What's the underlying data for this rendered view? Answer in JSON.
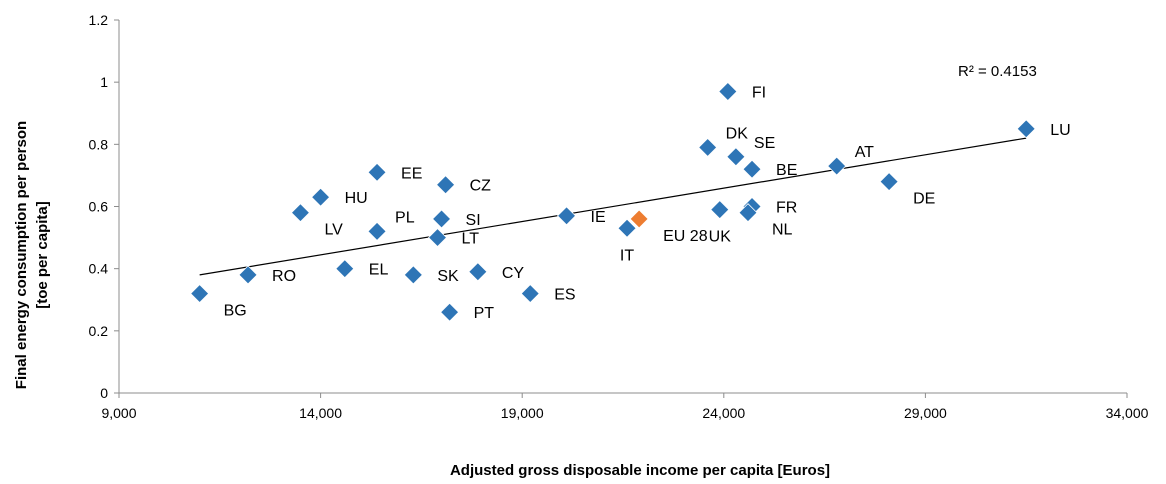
{
  "chart_data": {
    "type": "scatter",
    "title": "",
    "xlabel": "Adjusted gross disposable income per capita [Euros]",
    "ylabel_lines": [
      "Final energy consumption per person",
      "[toe per capita]"
    ],
    "xlim": [
      9000,
      34000
    ],
    "ylim": [
      0,
      1.2
    ],
    "x_ticks": [
      9000,
      14000,
      19000,
      24000,
      29000,
      34000
    ],
    "x_tick_labels": [
      "9,000",
      "14,000",
      "19,000",
      "24,000",
      "29,000",
      "34,000"
    ],
    "y_ticks": [
      0,
      0.2,
      0.4,
      0.6,
      0.8,
      1,
      1.2
    ],
    "y_tick_labels": [
      "0",
      "0.2",
      "0.4",
      "0.6",
      "0.8",
      "1",
      "1.2"
    ],
    "grid": false,
    "trendline": {
      "type": "linear",
      "x": [
        11000,
        31500
      ],
      "y": [
        0.38,
        0.82
      ]
    },
    "annotation": "R² = 0.4153",
    "colors": {
      "country": "#2e75b6",
      "eu": "#ed7d31",
      "line": "#000000"
    },
    "points": [
      {
        "label": "BG",
        "x": 11000,
        "y": 0.32,
        "group": "country",
        "label_pos": "below-right"
      },
      {
        "label": "RO",
        "x": 12200,
        "y": 0.38,
        "group": "country",
        "label_pos": "right"
      },
      {
        "label": "LV",
        "x": 13500,
        "y": 0.58,
        "group": "country",
        "label_pos": "below-right"
      },
      {
        "label": "HU",
        "x": 14000,
        "y": 0.63,
        "group": "country",
        "label_pos": "right"
      },
      {
        "label": "EL",
        "x": 14600,
        "y": 0.4,
        "group": "country",
        "label_pos": "right"
      },
      {
        "label": "EE",
        "x": 15400,
        "y": 0.71,
        "group": "country",
        "label_pos": "right"
      },
      {
        "label": "PL",
        "x": 15400,
        "y": 0.52,
        "group": "country",
        "label_pos": "above-right"
      },
      {
        "label": "SK",
        "x": 16300,
        "y": 0.38,
        "group": "country",
        "label_pos": "right"
      },
      {
        "label": "SI",
        "x": 17000,
        "y": 0.56,
        "group": "country",
        "label_pos": "right"
      },
      {
        "label": "LT",
        "x": 16900,
        "y": 0.5,
        "group": "country",
        "label_pos": "right"
      },
      {
        "label": "CZ",
        "x": 17100,
        "y": 0.67,
        "group": "country",
        "label_pos": "right"
      },
      {
        "label": "PT",
        "x": 17200,
        "y": 0.26,
        "group": "country",
        "label_pos": "right"
      },
      {
        "label": "CY",
        "x": 17900,
        "y": 0.39,
        "group": "country",
        "label_pos": "right"
      },
      {
        "label": "ES",
        "x": 19200,
        "y": 0.32,
        "group": "country",
        "label_pos": "right"
      },
      {
        "label": "IE",
        "x": 20100,
        "y": 0.57,
        "group": "country",
        "label_pos": "right"
      },
      {
        "label": "IT",
        "x": 21600,
        "y": 0.53,
        "group": "country",
        "label_pos": "below"
      },
      {
        "label": "EU 28",
        "x": 21900,
        "y": 0.56,
        "group": "eu",
        "label_pos": "below-right"
      },
      {
        "label": "FI",
        "x": 24100,
        "y": 0.97,
        "group": "country",
        "label_pos": "right"
      },
      {
        "label": "DK",
        "x": 23600,
        "y": 0.79,
        "group": "country",
        "label_pos": "above-right"
      },
      {
        "label": "UK",
        "x": 23900,
        "y": 0.59,
        "group": "country",
        "label_pos": "below"
      },
      {
        "label": "SE",
        "x": 24300,
        "y": 0.76,
        "group": "country",
        "label_pos": "above-right"
      },
      {
        "label": "BE",
        "x": 24700,
        "y": 0.72,
        "group": "country",
        "label_pos": "right"
      },
      {
        "label": "FR",
        "x": 24700,
        "y": 0.6,
        "group": "country",
        "label_pos": "right"
      },
      {
        "label": "NL",
        "x": 24600,
        "y": 0.58,
        "group": "country",
        "label_pos": "below-right"
      },
      {
        "label": "AT",
        "x": 26800,
        "y": 0.73,
        "group": "country",
        "label_pos": "above-right"
      },
      {
        "label": "DE",
        "x": 28100,
        "y": 0.68,
        "group": "country",
        "label_pos": "below-right"
      },
      {
        "label": "LU",
        "x": 31500,
        "y": 0.85,
        "group": "country",
        "label_pos": "right"
      }
    ]
  }
}
